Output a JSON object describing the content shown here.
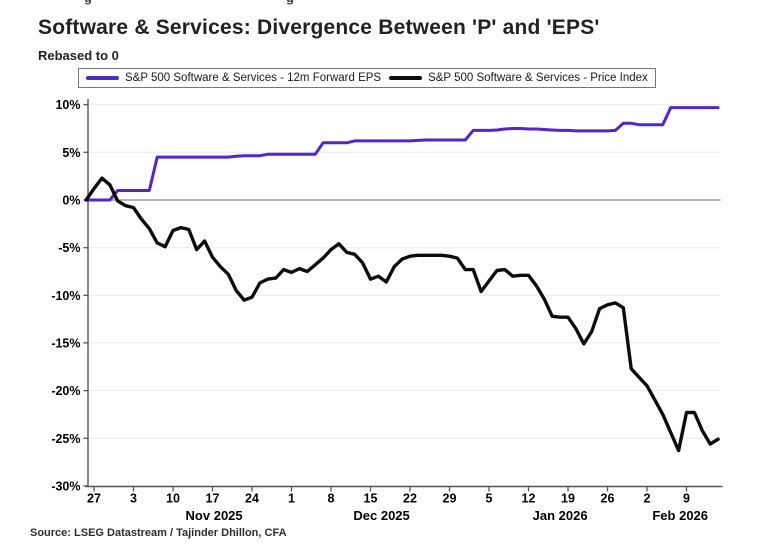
{
  "top_cropped_fragments": [
    "g",
    "g"
  ],
  "header": {
    "title": "Software & Services: Divergence Between 'P' and 'EPS'",
    "subtitle": "Rebased to 0"
  },
  "legend": {
    "items": [
      {
        "label": "S&P 500 Software & Services - 12m Forward EPS"
      },
      {
        "label": "S&P 500 Software & Services - Price Index"
      }
    ]
  },
  "source_note": "Source: LSEG Datastream / Tajinder Dhillon, CFA",
  "colors": {
    "eps_line": "#4f24da",
    "price_line": "#0d0d0d",
    "zero_line": "#8a8a8a",
    "gridline": "#ececec",
    "axis": "#555555"
  },
  "chart_data": {
    "type": "line",
    "title": "Software & Services: Divergence Between 'P' and 'EPS'",
    "subtitle": "Rebased to 0",
    "xlabel": "",
    "ylabel": "",
    "ylim": [
      -30,
      10
    ],
    "yticks": [
      10,
      5,
      0,
      -5,
      -10,
      -15,
      -20,
      -25,
      -30
    ],
    "ytick_suffix": "%",
    "grid": "horizontal",
    "legend_position": "top",
    "x_dates": [
      "Oct 24",
      "Oct 27",
      "Oct 28",
      "Oct 29",
      "Oct 30",
      "Oct 31",
      "Nov 3",
      "Nov 4",
      "Nov 5",
      "Nov 6",
      "Nov 7",
      "Nov 10",
      "Nov 11",
      "Nov 12",
      "Nov 13",
      "Nov 14",
      "Nov 17",
      "Nov 18",
      "Nov 19",
      "Nov 20",
      "Nov 21",
      "Nov 24",
      "Nov 25",
      "Nov 26",
      "Nov 27",
      "Nov 28",
      "Dec 1",
      "Dec 2",
      "Dec 3",
      "Dec 4",
      "Dec 5",
      "Dec 8",
      "Dec 9",
      "Dec 10",
      "Dec 11",
      "Dec 12",
      "Dec 15",
      "Dec 16",
      "Dec 17",
      "Dec 18",
      "Dec 19",
      "Dec 22",
      "Dec 23",
      "Dec 24",
      "Dec 25",
      "Dec 26",
      "Dec 29",
      "Dec 30",
      "Dec 31",
      "Jan 1",
      "Jan 2",
      "Jan 5",
      "Jan 6",
      "Jan 7",
      "Jan 8",
      "Jan 9",
      "Jan 12",
      "Jan 13",
      "Jan 14",
      "Jan 15",
      "Jan 16",
      "Jan 19",
      "Jan 20",
      "Jan 21",
      "Jan 22",
      "Jan 23",
      "Jan 26",
      "Jan 27",
      "Jan 28",
      "Jan 29",
      "Jan 30",
      "Feb 2",
      "Feb 3",
      "Feb 4",
      "Feb 5",
      "Feb 6",
      "Feb 9",
      "Feb 10",
      "Feb 11",
      "Feb 12",
      "Feb 13"
    ],
    "xticks": [
      {
        "label": "27",
        "index": 1
      },
      {
        "label": "3",
        "index": 6
      },
      {
        "label": "10",
        "index": 11
      },
      {
        "label": "17",
        "index": 16
      },
      {
        "label": "24",
        "index": 21
      },
      {
        "label": "1",
        "index": 26
      },
      {
        "label": "8",
        "index": 31
      },
      {
        "label": "15",
        "index": 36
      },
      {
        "label": "22",
        "index": 41
      },
      {
        "label": "29",
        "index": 46
      },
      {
        "label": "5",
        "index": 51
      },
      {
        "label": "12",
        "index": 56
      },
      {
        "label": "19",
        "index": 61
      },
      {
        "label": "26",
        "index": 66
      },
      {
        "label": "2",
        "index": 71
      },
      {
        "label": "9",
        "index": 76
      }
    ],
    "month_labels": [
      {
        "label": "Nov 2025",
        "index": 16.2
      },
      {
        "label": "Dec 2025",
        "index": 37.4
      },
      {
        "label": "Jan 2026",
        "index": 60.0
      },
      {
        "label": "Feb 2026",
        "index": 75.2
      }
    ],
    "series": [
      {
        "name": "S&P 500 Software & Services - 12m Forward EPS",
        "color": "#4f24da",
        "line_width": 3,
        "values": [
          0.0,
          0.0,
          0.0,
          0.0,
          1.0,
          1.0,
          1.0,
          1.0,
          1.0,
          4.5,
          4.5,
          4.5,
          4.5,
          4.5,
          4.5,
          4.5,
          4.5,
          4.5,
          4.5,
          4.6,
          4.65,
          4.65,
          4.65,
          4.8,
          4.8,
          4.8,
          4.8,
          4.8,
          4.8,
          4.8,
          6.0,
          6.0,
          6.0,
          6.0,
          6.2,
          6.2,
          6.2,
          6.2,
          6.2,
          6.2,
          6.2,
          6.2,
          6.25,
          6.3,
          6.3,
          6.3,
          6.3,
          6.3,
          6.3,
          7.3,
          7.3,
          7.3,
          7.35,
          7.45,
          7.5,
          7.5,
          7.45,
          7.45,
          7.4,
          7.35,
          7.3,
          7.3,
          7.25,
          7.25,
          7.25,
          7.25,
          7.25,
          7.3,
          8.05,
          8.05,
          7.9,
          7.9,
          7.9,
          7.9,
          9.7,
          9.7,
          9.7,
          9.7,
          9.7,
          9.7,
          9.7
        ]
      },
      {
        "name": "S&P 500 Software & Services - Price Index",
        "color": "#0d0d0d",
        "line_width": 3.4,
        "values": [
          0.0,
          1.2,
          2.3,
          1.6,
          -0.1,
          -0.6,
          -0.8,
          -2.0,
          -3.0,
          -4.5,
          -4.9,
          -3.2,
          -2.9,
          -3.1,
          -5.2,
          -4.3,
          -6.0,
          -7.0,
          -7.8,
          -9.5,
          -10.5,
          -10.2,
          -8.7,
          -8.3,
          -8.2,
          -7.3,
          -7.6,
          -7.2,
          -7.5,
          -6.8,
          -6.1,
          -5.2,
          -4.6,
          -5.5,
          -5.7,
          -6.6,
          -8.3,
          -8.0,
          -8.6,
          -7.0,
          -6.2,
          -5.9,
          -5.8,
          -5.8,
          -5.8,
          -5.8,
          -5.9,
          -6.1,
          -7.3,
          -7.3,
          -9.6,
          -8.5,
          -7.4,
          -7.3,
          -8.0,
          -7.9,
          -7.9,
          -9.0,
          -10.4,
          -12.2,
          -12.3,
          -12.3,
          -13.5,
          -15.1,
          -13.8,
          -11.4,
          -11.0,
          -10.8,
          -11.3,
          -17.7,
          -18.6,
          -19.5,
          -21.0,
          -22.5,
          -24.4,
          -26.3,
          -22.3,
          -22.3,
          -24.2,
          -25.6,
          -25.1
        ]
      }
    ]
  }
}
